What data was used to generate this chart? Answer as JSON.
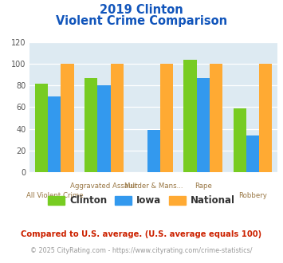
{
  "title_line1": "2019 Clinton",
  "title_line2": "Violent Crime Comparison",
  "clinton": [
    82,
    87,
    0,
    104,
    59
  ],
  "iowa": [
    70,
    80,
    39,
    87,
    34
  ],
  "national": [
    100,
    100,
    100,
    100,
    100
  ],
  "clinton_color": "#77cc22",
  "iowa_color": "#3399ee",
  "national_color": "#ffaa33",
  "ylim": [
    0,
    120
  ],
  "yticks": [
    0,
    20,
    40,
    60,
    80,
    100,
    120
  ],
  "background_color": "#ddeaf2",
  "title_color": "#1155bb",
  "xlabel_color": "#997744",
  "legend_labels": [
    "Clinton",
    "Iowa",
    "National"
  ],
  "footnote1": "Compared to U.S. average. (U.S. average equals 100)",
  "footnote2": "© 2025 CityRating.com - https://www.cityrating.com/crime-statistics/",
  "footnote1_color": "#cc2200",
  "footnote2_color": "#999999",
  "top_xlabels": [
    "",
    "Aggravated Assault",
    "Murder & Mans...",
    "Rape",
    ""
  ],
  "bot_xlabels": [
    "All Violent Crime",
    "",
    "",
    "",
    "Robbery"
  ],
  "bar_width": 0.26,
  "grid_color": "#ffffff",
  "tick_color": "#555555"
}
